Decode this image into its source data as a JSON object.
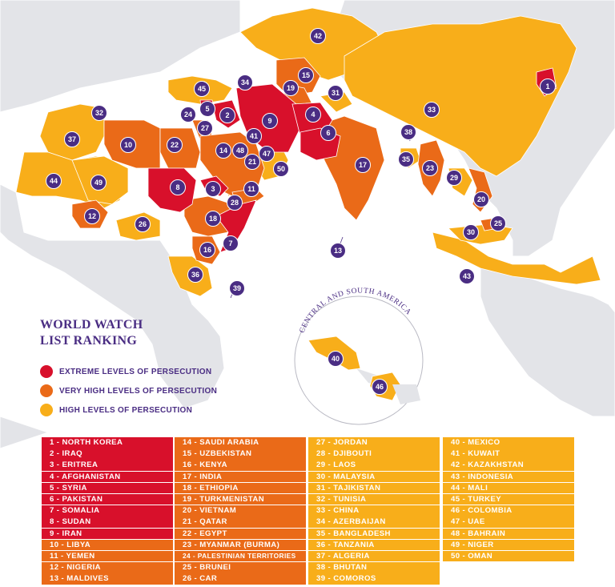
{
  "title_lines": [
    "WORLD WATCH",
    "LIST RANKING"
  ],
  "colors": {
    "extreme": "#d8102b",
    "very_high": "#ea6a18",
    "high": "#f8ae1a",
    "land": "#e3e4e8",
    "pin": "#4a2d83",
    "title": "#4a2d83"
  },
  "legend": [
    {
      "label": "EXTREME LEVELS OF PERSECUTION",
      "color": "#d8102b"
    },
    {
      "label": "VERY HIGH LEVELS OF PERSECUTION",
      "color": "#ea6a18"
    },
    {
      "label": "HIGH LEVELS OF PERSECUTION",
      "color": "#f8ae1a"
    }
  ],
  "inset_title": "CENTRAL AND SOUTH AMERICA",
  "rankings": [
    {
      "n": 1,
      "label": "1 - NORTH KOREA",
      "level": "extreme"
    },
    {
      "n": 2,
      "label": "2 - IRAQ",
      "level": "extreme"
    },
    {
      "n": 3,
      "label": "3 - ERITREA",
      "level": "extreme"
    },
    {
      "n": 4,
      "label": "4 - AFGHANISTAN",
      "level": "extreme"
    },
    {
      "n": 5,
      "label": "5 - SYRIA",
      "level": "extreme"
    },
    {
      "n": 6,
      "label": "6 - PAKISTAN",
      "level": "extreme"
    },
    {
      "n": 7,
      "label": "7 - SOMALIA",
      "level": "extreme"
    },
    {
      "n": 8,
      "label": "8 - SUDAN",
      "level": "extreme"
    },
    {
      "n": 9,
      "label": "9 - IRAN",
      "level": "extreme"
    },
    {
      "n": 10,
      "label": "10 - LIBYA",
      "level": "very_high"
    },
    {
      "n": 11,
      "label": "11 - YEMEN",
      "level": "very_high"
    },
    {
      "n": 12,
      "label": "12 - NIGERIA",
      "level": "very_high"
    },
    {
      "n": 13,
      "label": "13 - MALDIVES",
      "level": "very_high"
    },
    {
      "n": 14,
      "label": "14 - SAUDI ARABIA",
      "level": "very_high"
    },
    {
      "n": 15,
      "label": "15 - UZBEKISTAN",
      "level": "very_high"
    },
    {
      "n": 16,
      "label": "16 - KENYA",
      "level": "very_high"
    },
    {
      "n": 17,
      "label": "17 - INDIA",
      "level": "very_high"
    },
    {
      "n": 18,
      "label": "18 - ETHIOPIA",
      "level": "very_high"
    },
    {
      "n": 19,
      "label": "19 - TURKMENISTAN",
      "level": "very_high"
    },
    {
      "n": 20,
      "label": "20 - VIETNAM",
      "level": "very_high"
    },
    {
      "n": 21,
      "label": "21 - QATAR",
      "level": "very_high"
    },
    {
      "n": 22,
      "label": "22 - EGYPT",
      "level": "very_high"
    },
    {
      "n": 23,
      "label": "23 - MYANMAR (BURMA)",
      "level": "very_high"
    },
    {
      "n": 24,
      "label": "24 - PALESTINIAN TERRITORIES",
      "level": "very_high"
    },
    {
      "n": 25,
      "label": "25 - BRUNEI",
      "level": "very_high"
    },
    {
      "n": 26,
      "label": "26 - CAR",
      "level": "very_high"
    },
    {
      "n": 27,
      "label": "27 - JORDAN",
      "level": "high"
    },
    {
      "n": 28,
      "label": "28 - DJIBOUTI",
      "level": "high"
    },
    {
      "n": 29,
      "label": "29 - LAOS",
      "level": "high"
    },
    {
      "n": 30,
      "label": "30 - MALAYSIA",
      "level": "high"
    },
    {
      "n": 31,
      "label": "31 - TAJIKISTAN",
      "level": "high"
    },
    {
      "n": 32,
      "label": "32 - TUNISIA",
      "level": "high"
    },
    {
      "n": 33,
      "label": "33 - CHINA",
      "level": "high"
    },
    {
      "n": 34,
      "label": "34 - AZERBAIJAN",
      "level": "high"
    },
    {
      "n": 35,
      "label": "35 - BANGLADESH",
      "level": "high"
    },
    {
      "n": 36,
      "label": "36 - TANZANIA",
      "level": "high"
    },
    {
      "n": 37,
      "label": "37 - ALGERIA",
      "level": "high"
    },
    {
      "n": 38,
      "label": "38 - BHUTAN",
      "level": "high"
    },
    {
      "n": 39,
      "label": "39 - COMOROS",
      "level": "high"
    },
    {
      "n": 40,
      "label": "40 - MEXICO",
      "level": "high"
    },
    {
      "n": 41,
      "label": "41 - KUWAIT",
      "level": "high"
    },
    {
      "n": 42,
      "label": "42 - KAZAKHSTAN",
      "level": "high"
    },
    {
      "n": 43,
      "label": "43 - INDONESIA",
      "level": "high"
    },
    {
      "n": 44,
      "label": "44 - MALI",
      "level": "high"
    },
    {
      "n": 45,
      "label": "45 - TURKEY",
      "level": "high"
    },
    {
      "n": 46,
      "label": "46 - COLOMBIA",
      "level": "high"
    },
    {
      "n": 47,
      "label": "47 - UAE",
      "level": "high"
    },
    {
      "n": 48,
      "label": "48 - BAHRAIN",
      "level": "high"
    },
    {
      "n": 49,
      "label": "49 - NIGER",
      "level": "high"
    },
    {
      "n": 50,
      "label": "50 - OMAN",
      "level": "high"
    }
  ]
}
